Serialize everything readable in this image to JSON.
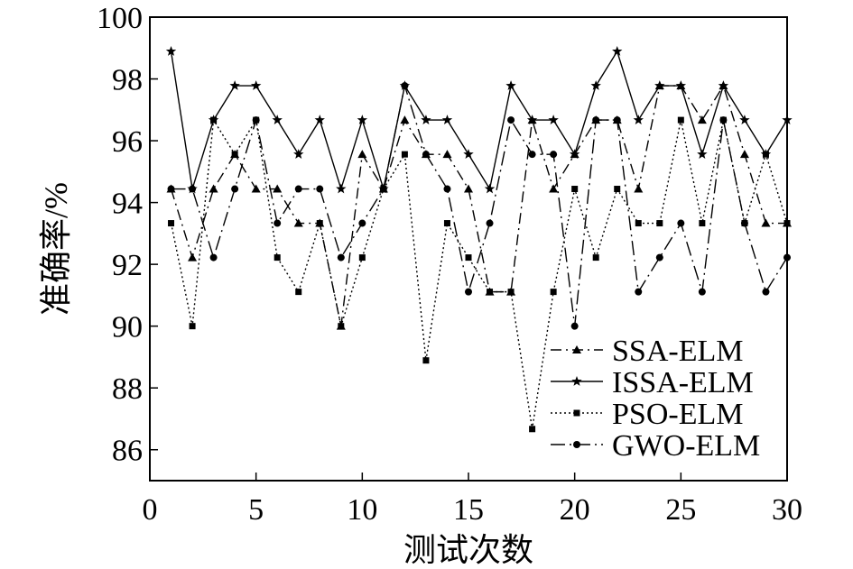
{
  "chart_data": {
    "type": "line",
    "xlabel": "测试次数",
    "ylabel": "准确率/%",
    "xlim": [
      0,
      30
    ],
    "ylim": [
      85,
      100
    ],
    "xticks": [
      "0",
      "5",
      "10",
      "15",
      "20",
      "25",
      "30"
    ],
    "yticks": [
      "86",
      "88",
      "90",
      "92",
      "94",
      "96",
      "98",
      "100"
    ],
    "grid": false,
    "legend_position": "bottom-right",
    "x": [
      1,
      2,
      3,
      4,
      5,
      6,
      7,
      8,
      9,
      10,
      11,
      12,
      13,
      14,
      15,
      16,
      17,
      18,
      19,
      20,
      21,
      22,
      23,
      24,
      25,
      26,
      27,
      28,
      29,
      30
    ],
    "series": [
      {
        "name": "SSA-ELM",
        "marker": "triangle",
        "dash": "dashdot",
        "values": [
          94.44,
          92.22,
          94.44,
          95.56,
          94.44,
          94.44,
          93.33,
          93.33,
          90.0,
          95.56,
          94.44,
          96.67,
          95.56,
          95.56,
          94.44,
          91.11,
          91.11,
          96.67,
          94.44,
          95.56,
          96.67,
          96.67,
          94.44,
          97.78,
          97.78,
          96.67,
          97.78,
          95.56,
          93.33,
          93.33
        ]
      },
      {
        "name": "ISSA-ELM",
        "marker": "star",
        "dash": "solid",
        "values": [
          98.89,
          94.44,
          96.67,
          97.78,
          97.78,
          96.67,
          95.56,
          96.67,
          94.44,
          96.67,
          94.44,
          97.78,
          96.67,
          96.67,
          95.56,
          94.44,
          97.78,
          96.67,
          96.67,
          95.56,
          97.78,
          98.89,
          96.67,
          97.78,
          97.78,
          95.56,
          97.78,
          96.67,
          95.56,
          96.67
        ]
      },
      {
        "name": "PSO-ELM",
        "marker": "square",
        "dash": "dotted",
        "values": [
          93.33,
          90.0,
          96.67,
          95.56,
          96.67,
          92.22,
          91.11,
          93.33,
          90.0,
          92.22,
          94.44,
          95.56,
          88.89,
          93.33,
          92.22,
          91.11,
          91.11,
          86.67,
          91.11,
          94.44,
          92.22,
          94.44,
          93.33,
          93.33,
          96.67,
          93.33,
          96.67,
          93.33,
          95.56,
          93.33
        ]
      },
      {
        "name": "GWO-ELM",
        "marker": "circle",
        "dash": "longdashdot",
        "values": [
          94.44,
          94.44,
          92.22,
          94.44,
          96.67,
          93.33,
          94.44,
          94.44,
          92.22,
          93.33,
          94.44,
          97.78,
          95.56,
          94.44,
          91.11,
          93.33,
          96.67,
          95.56,
          95.56,
          90.0,
          96.67,
          96.67,
          91.11,
          92.22,
          93.33,
          91.11,
          96.67,
          93.33,
          91.11,
          92.22
        ]
      }
    ]
  }
}
